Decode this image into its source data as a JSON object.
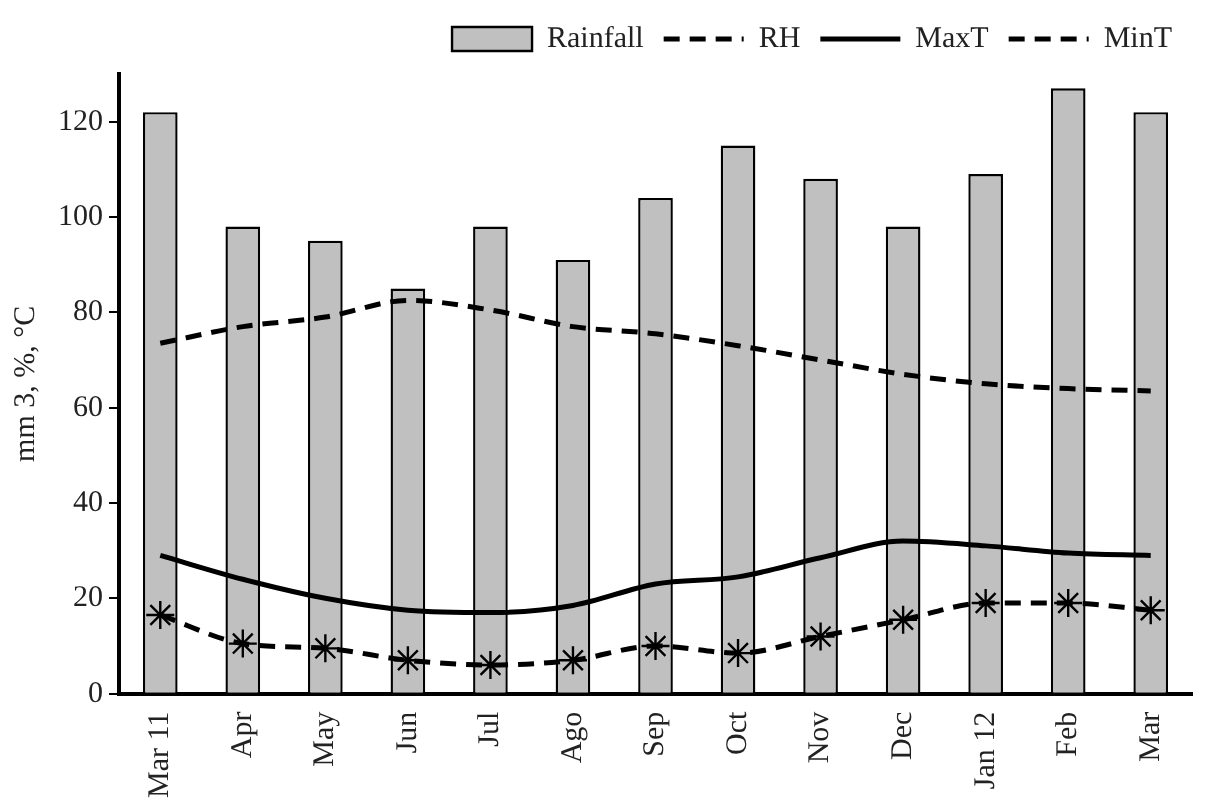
{
  "chart_data": {
    "type": "bar",
    "ylabel": "mm 3, %, °C",
    "categories": [
      "Mar 11",
      "Apr",
      "May",
      "Jun",
      "Jul",
      "Ago",
      "Sep",
      "Oct",
      "Nov",
      "Dec",
      "Jan 12",
      "Feb",
      "Mar"
    ],
    "series": [
      {
        "name": "Rainfall",
        "color": "#c0c0c0",
        "values": [
          122,
          98,
          95,
          85,
          98,
          91,
          104,
          115,
          108,
          98,
          109,
          127,
          122
        ]
      },
      {
        "name": "RH",
        "type": "line",
        "color": "#000000",
        "line_style": "dashed",
        "marker": "none",
        "values": [
          73.5,
          77,
          79,
          82.5,
          80.5,
          77,
          75.5,
          73,
          70,
          67,
          65,
          64,
          63.5
        ]
      },
      {
        "name": "MaxT",
        "type": "line",
        "color": "#000000",
        "line_style": "solid",
        "marker": "none",
        "values": [
          29,
          24,
          20,
          17.5,
          17,
          18.5,
          23,
          24.5,
          28.5,
          32,
          31,
          29.5,
          29
        ]
      },
      {
        "name": "MinT",
        "type": "line",
        "color": "#000000",
        "line_style": "dashed",
        "marker": "cross",
        "values": [
          16.5,
          10.5,
          9.5,
          7,
          6,
          7,
          10,
          8.5,
          12,
          15.5,
          19,
          19,
          17.5
        ]
      }
    ],
    "ylim": [
      0,
      130
    ],
    "yticks": [
      0,
      20,
      40,
      60,
      80,
      100,
      120
    ],
    "grid": false,
    "legend": "top"
  }
}
